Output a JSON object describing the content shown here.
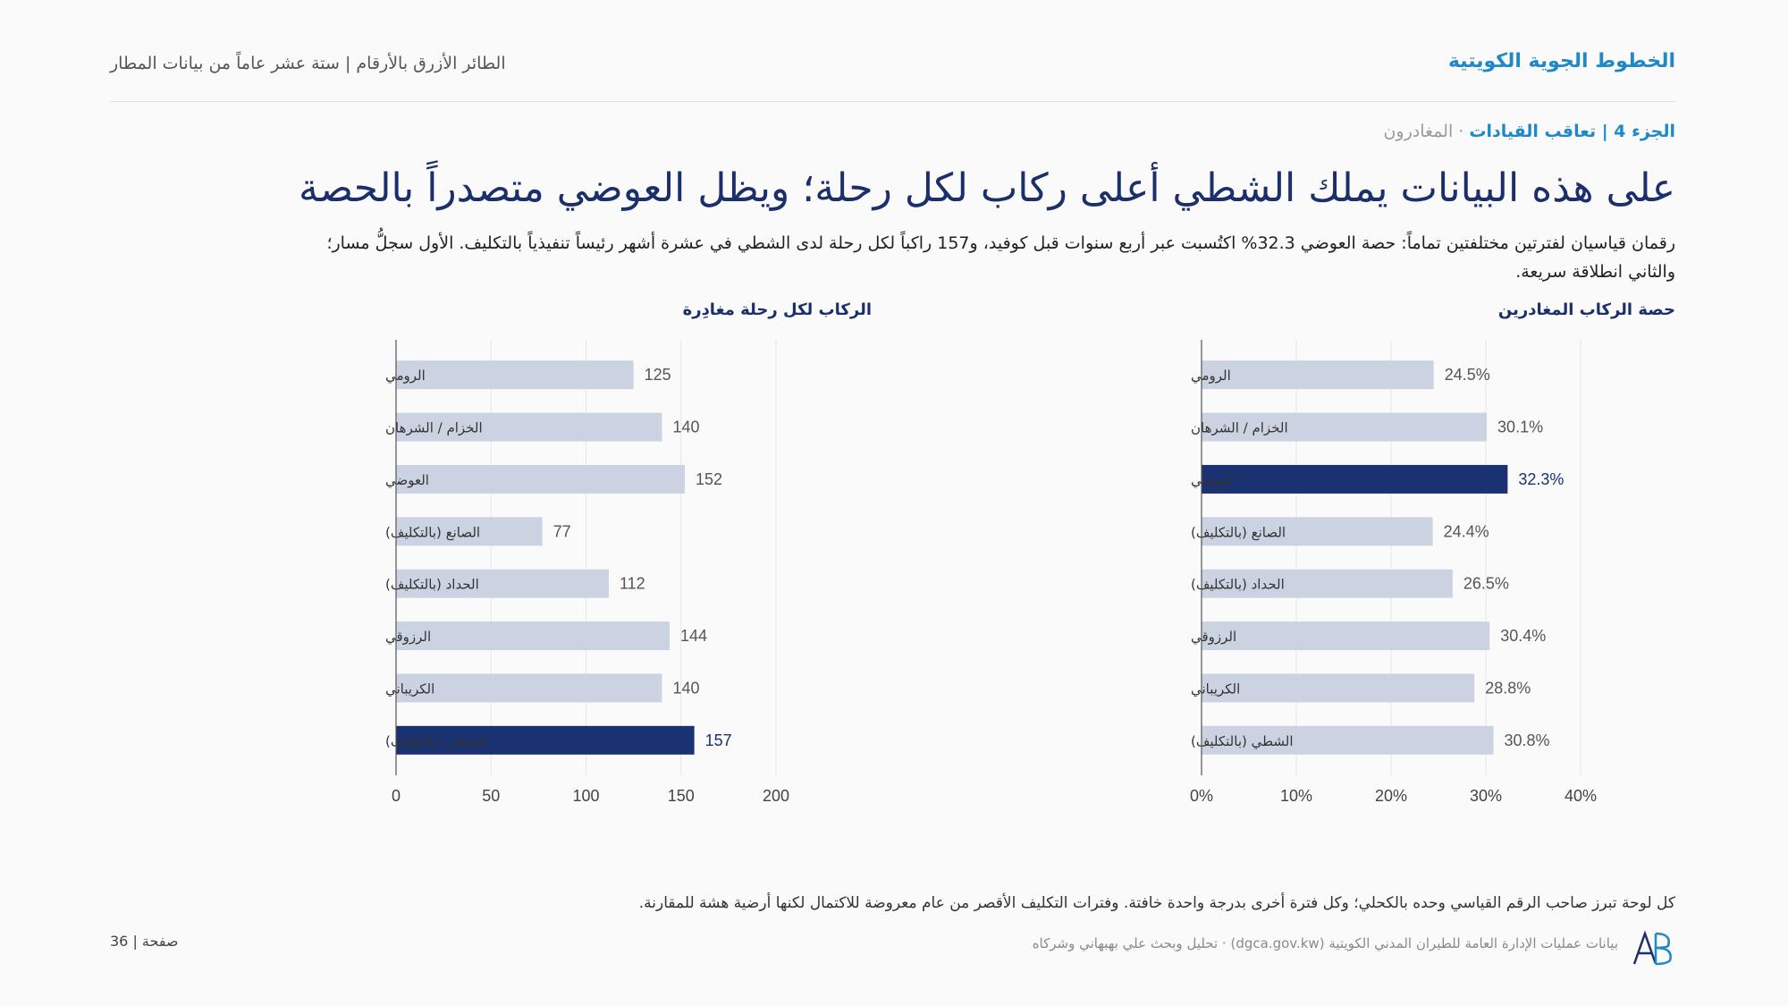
{
  "header": {
    "brand": "الخطوط الجوية الكويتية",
    "report": "الطائر الأزرق بالأرقام | ستة عشر عاماً من بيانات المطار"
  },
  "section": {
    "part": "الجزء 4 | تعاقب القيادات",
    "sub": " · المغادرون"
  },
  "title": "على هذه البيانات يملك الشطي أعلى ركاب لكل رحلة؛ ويظل العوضي متصدراً بالحصة",
  "subtitle": "رقمان قياسيان لفترتين مختلفتين تماماً: حصة العوضي 32.3% اكتُسبت عبر أربع سنوات قبل كوفيد، و157 راكباً لكل رحلة لدى الشطي في عشرة أشهر رئيساً تنفيذياً بالتكليف. الأول سجلُّ مسار؛ والثاني انطلاقة سريعة.",
  "chart_data": [
    {
      "type": "bar",
      "orientation": "horizontal",
      "title": "حصة الركاب المغادرين",
      "categories": [
        "الرومي",
        "الخزام / الشرهان",
        "العوضي",
        "الصانع (بالتكليف)",
        "الحداد (بالتكليف)",
        "الرزوقي",
        "الكريباني",
        "الشطي (بالتكليف)"
      ],
      "values": [
        24.5,
        30.1,
        32.3,
        24.4,
        26.5,
        30.4,
        28.8,
        30.8
      ],
      "value_labels": [
        "24.5%",
        "30.1%",
        "32.3%",
        "24.4%",
        "26.5%",
        "30.4%",
        "28.8%",
        "30.8%"
      ],
      "highlight_index": 2,
      "xlim": [
        0,
        40
      ],
      "xticks": [
        "0%",
        "10%",
        "20%",
        "30%",
        "40%"
      ],
      "xtick_values": [
        0,
        10,
        20,
        30,
        40
      ],
      "colors": {
        "base": "#cbd3e3",
        "highlight": "#1a3272"
      }
    },
    {
      "type": "bar",
      "orientation": "horizontal",
      "title": "الركاب لكل رحلة مغادِرة",
      "categories": [
        "الرومي",
        "الخزام / الشرهان",
        "العوضي",
        "الصانع (بالتكليف)",
        "الحداد (بالتكليف)",
        "الرزوقي",
        "الكريباني",
        "الشطي (بالتكليف)"
      ],
      "values": [
        125,
        140,
        152,
        77,
        112,
        144,
        140,
        157
      ],
      "value_labels": [
        "125",
        "140",
        "152",
        "77",
        "112",
        "144",
        "140",
        "157"
      ],
      "highlight_index": 7,
      "xlim": [
        0,
        200
      ],
      "xticks": [
        "0",
        "50",
        "100",
        "150",
        "200"
      ],
      "xtick_values": [
        0,
        50,
        100,
        150,
        200
      ],
      "colors": {
        "base": "#cbd3e3",
        "highlight": "#1a3272"
      }
    }
  ],
  "footnote": "كل لوحة تبرز صاحب الرقم القياسي وحده بالكحلي؛ وكل فترة أخرى بدرجة واحدة خافتة. وفترات التكليف الأقصر من عام معروضة للاكتمال لكنها أرضية هشة للمقارنة.",
  "footer": {
    "page": "صفحة | 36",
    "source": "بيانات عمليات الإدارة العامة للطيران المدني الكويتية (dgca.gov.kw) · تحليل وبحث علي بهبهاني وشركاه"
  }
}
